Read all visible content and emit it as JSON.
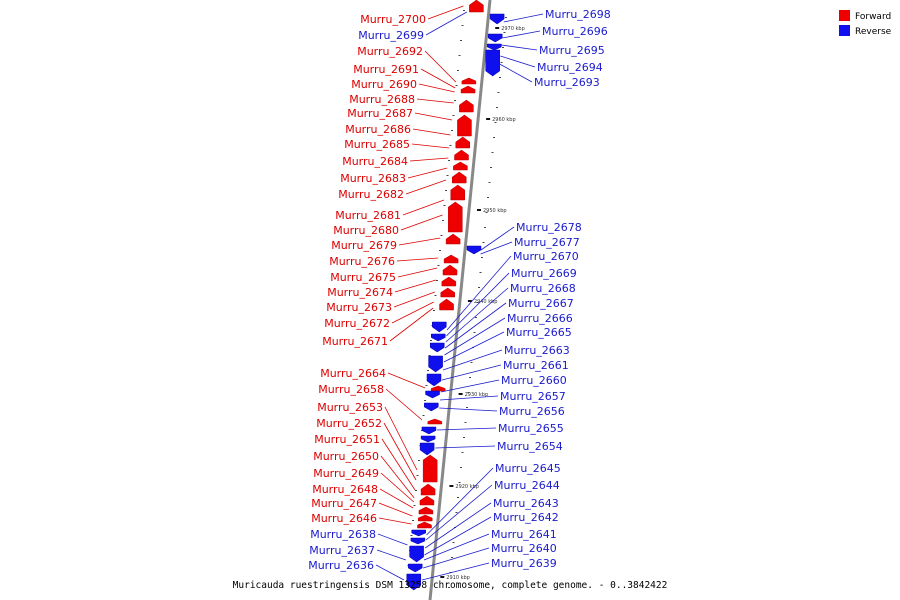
{
  "legend": {
    "forward_label": "Forward",
    "reverse_label": "Reverse",
    "forward_color": "#ee0000",
    "reverse_color": "#1010ee"
  },
  "caption": "Muricauda ruestringensis DSM 13258 chromosome, complete genome. - 0..3842422",
  "axis": {
    "line_color": "#888888",
    "ticks": [
      "2970 kbp",
      "2960 kbp",
      "2950 kbp",
      "2940 kbp",
      "2930 kbp",
      "2920 kbp",
      "2910 kbp"
    ]
  },
  "forward_labels": [
    "Murru_2700",
    "Murru_2692",
    "Murru_2691",
    "Murru_2690",
    "Murru_2688",
    "Murru_2687",
    "Murru_2686",
    "Murru_2685",
    "Murru_2684",
    "Murru_2683",
    "Murru_2682",
    "Murru_2681",
    "Murru_2680",
    "Murru_2679",
    "Murru_2676",
    "Murru_2675",
    "Murru_2674",
    "Murru_2673",
    "Murru_2672",
    "Murru_2671",
    "Murru_2664",
    "Murru_2658",
    "Murru_2653",
    "Murru_2652",
    "Murru_2651",
    "Murru_2650",
    "Murru_2649",
    "Murru_2648",
    "Murru_2647",
    "Murru_2646"
  ],
  "reverse_left_labels": [
    "Murru_2699",
    "Murru_2638",
    "Murru_2637",
    "Murru_2636"
  ],
  "reverse_right_labels": [
    "Murru_2698",
    "Murru_2696",
    "Murru_2695",
    "Murru_2694",
    "Murru_2693",
    "Murru_2678",
    "Murru_2677",
    "Murru_2670",
    "Murru_2669",
    "Murru_2668",
    "Murru_2667",
    "Murru_2666",
    "Murru_2665",
    "Murru_2663",
    "Murru_2661",
    "Murru_2660",
    "Murru_2657",
    "Murru_2656",
    "Murru_2655",
    "Murru_2654",
    "Murru_2645",
    "Murru_2644",
    "Murru_2643",
    "Murru_2642",
    "Murru_2641",
    "Murru_2640",
    "Murru_2639"
  ]
}
